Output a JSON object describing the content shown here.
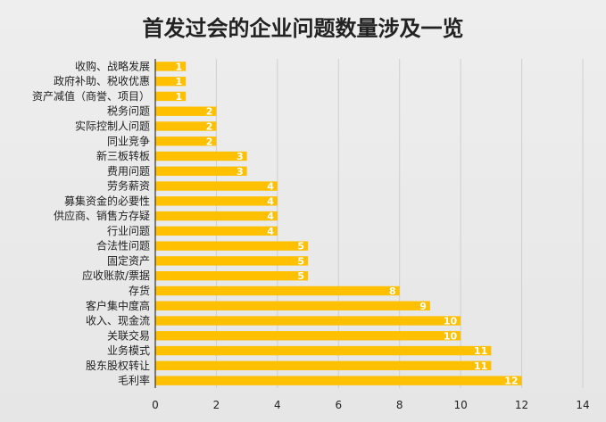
{
  "chart_data": {
    "type": "bar",
    "orientation": "horizontal",
    "title": "首发过会的企业问题数量涉及一览",
    "categories": [
      "收购、战略发展",
      "政府补助、税收优惠",
      "资产减值（商誉、项目）",
      "税务问题",
      "实际控制人问题",
      "同业竞争",
      "新三板转板",
      "费用问题",
      "劳务薪资",
      "募集资金的必要性",
      "供应商、销售方存疑",
      "行业问题",
      "合法性问题",
      "固定资产",
      "应收账款/票据",
      "存货",
      "客户集中度高",
      "收入、现金流",
      "关联交易",
      "业务模式",
      "股东股权转让",
      "毛利率"
    ],
    "values": [
      1,
      1,
      1,
      2,
      2,
      2,
      3,
      3,
      4,
      4,
      4,
      4,
      5,
      5,
      5,
      8,
      9,
      10,
      10,
      11,
      11,
      12
    ],
    "xlim": [
      0,
      14
    ],
    "xticks": [
      0,
      2,
      4,
      6,
      8,
      10,
      12,
      14
    ],
    "grid": true,
    "bar_color": "#ffc000",
    "legend": "none"
  }
}
